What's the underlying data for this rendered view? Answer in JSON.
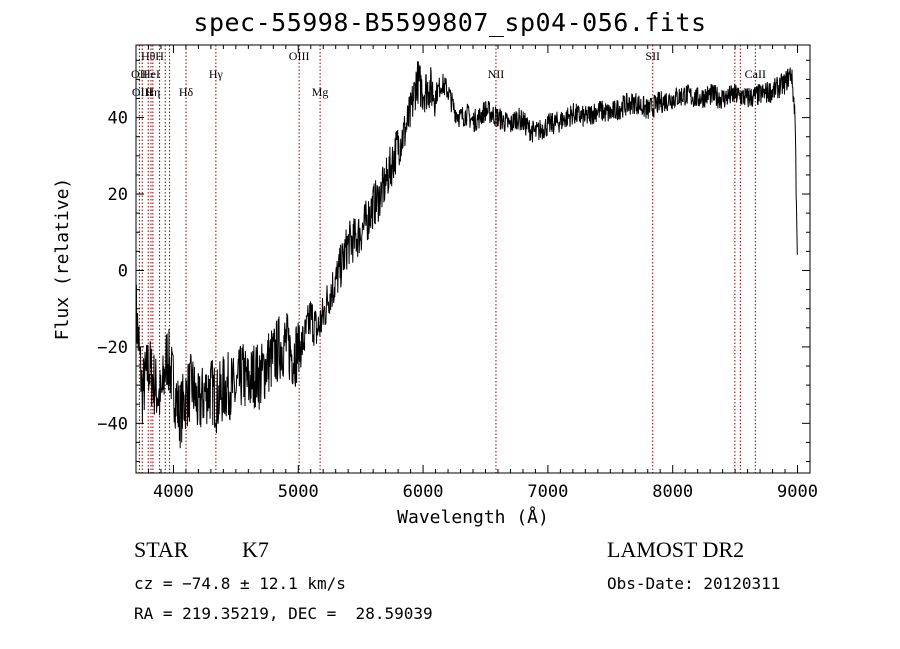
{
  "chart_data": {
    "type": "line",
    "title": "spec-55998-B5599807_sp04-056.fits",
    "xlabel": "Wavelength (Å)",
    "ylabel": "Flux (relative)",
    "xlim": [
      3700,
      9100
    ],
    "ylim": [
      -53,
      59
    ],
    "xticks": [
      4000,
      5000,
      6000,
      7000,
      8000,
      9000
    ],
    "yticks": [
      -40,
      -20,
      0,
      20,
      40
    ],
    "grid": false,
    "line_color": "#000000",
    "marker_color": "#8b0000",
    "series": [
      {
        "x": [
          3700,
          3750,
          3800,
          3850,
          3900,
          3950,
          4000,
          4050,
          4100,
          4150,
          4200,
          4250,
          4300,
          4350,
          4400,
          4450,
          4500,
          4550,
          4600,
          4650,
          4700,
          4750,
          4800,
          4850,
          4900,
          4950,
          5000,
          5050,
          5100,
          5150,
          5200,
          5250,
          5300,
          5350,
          5400,
          5450,
          5500,
          5550,
          5600,
          5650,
          5700,
          5750,
          5800,
          5850,
          5900,
          5950,
          6000,
          6050,
          6100,
          6150,
          6200,
          6250,
          6300,
          6350,
          6400,
          6450,
          6500,
          6550,
          6600,
          6650,
          6700,
          6750,
          6800,
          6850,
          6900,
          6950,
          7000,
          7100,
          7200,
          7300,
          7400,
          7500,
          7600,
          7700,
          7800,
          7900,
          8000,
          8100,
          8200,
          8300,
          8400,
          8500,
          8600,
          8700,
          8800,
          8900,
          8950,
          8980,
          9000
        ],
        "y": [
          -10,
          -32,
          -25,
          -30,
          -34,
          -22,
          -30,
          -38,
          -33,
          -30,
          -36,
          -32,
          -31,
          -34,
          -31,
          -30,
          -32,
          -27,
          -30,
          -27,
          -28,
          -24,
          -23,
          -20,
          -19,
          -22,
          -21,
          -18,
          -12,
          -16,
          -12,
          -6,
          -3,
          2,
          7,
          8,
          10,
          13,
          17,
          19,
          23,
          28,
          33,
          36,
          41,
          50,
          47,
          48,
          46,
          49,
          47,
          42,
          40,
          41,
          39,
          40,
          42,
          41,
          40,
          39,
          38,
          40,
          39,
          37,
          36,
          37,
          38,
          39,
          41,
          40,
          42,
          41,
          43,
          44,
          42,
          44,
          45,
          46,
          45,
          46,
          45,
          46,
          45,
          46,
          47,
          49,
          52,
          41,
          0
        ]
      }
    ],
    "line_markers": [
      {
        "label": "Hθ",
        "x": 3798,
        "row": 0
      },
      {
        "label": "H",
        "x": 3889,
        "row": 0
      },
      {
        "label": "OII",
        "x": 3727,
        "row": 1
      },
      {
        "label": "HeI",
        "x": 3820,
        "row": 1
      },
      {
        "label": "Hγ",
        "x": 4340,
        "row": 1
      },
      {
        "label": "OIII",
        "x": 5007,
        "row": 0
      },
      {
        "label": "OIII",
        "x": 3750,
        "row": 2
      },
      {
        "label": "Hη",
        "x": 3835,
        "row": 2
      },
      {
        "label": "Hδ",
        "x": 4101,
        "row": 2
      },
      {
        "label": "Mg",
        "x": 5175,
        "row": 2
      },
      {
        "label": "NII",
        "x": 6584,
        "row": 1
      },
      {
        "label": "SII",
        "x": 7840,
        "row": 0
      },
      {
        "label": "CaII",
        "x": 8662,
        "row": 1
      },
      {
        "label": "CaII",
        "x": 8542,
        "row": 2
      }
    ],
    "extra_marker_lines": [
      3934,
      3969,
      8498
    ]
  },
  "info": {
    "object_class": "STAR",
    "subclass": "K7",
    "survey": "LAMOST DR2",
    "redshift": "cz = −74.8 ± 12.1 km/s",
    "obs_date": "Obs-Date: 20120311",
    "coords": "RA = 219.35219, DEC =  28.59039"
  }
}
